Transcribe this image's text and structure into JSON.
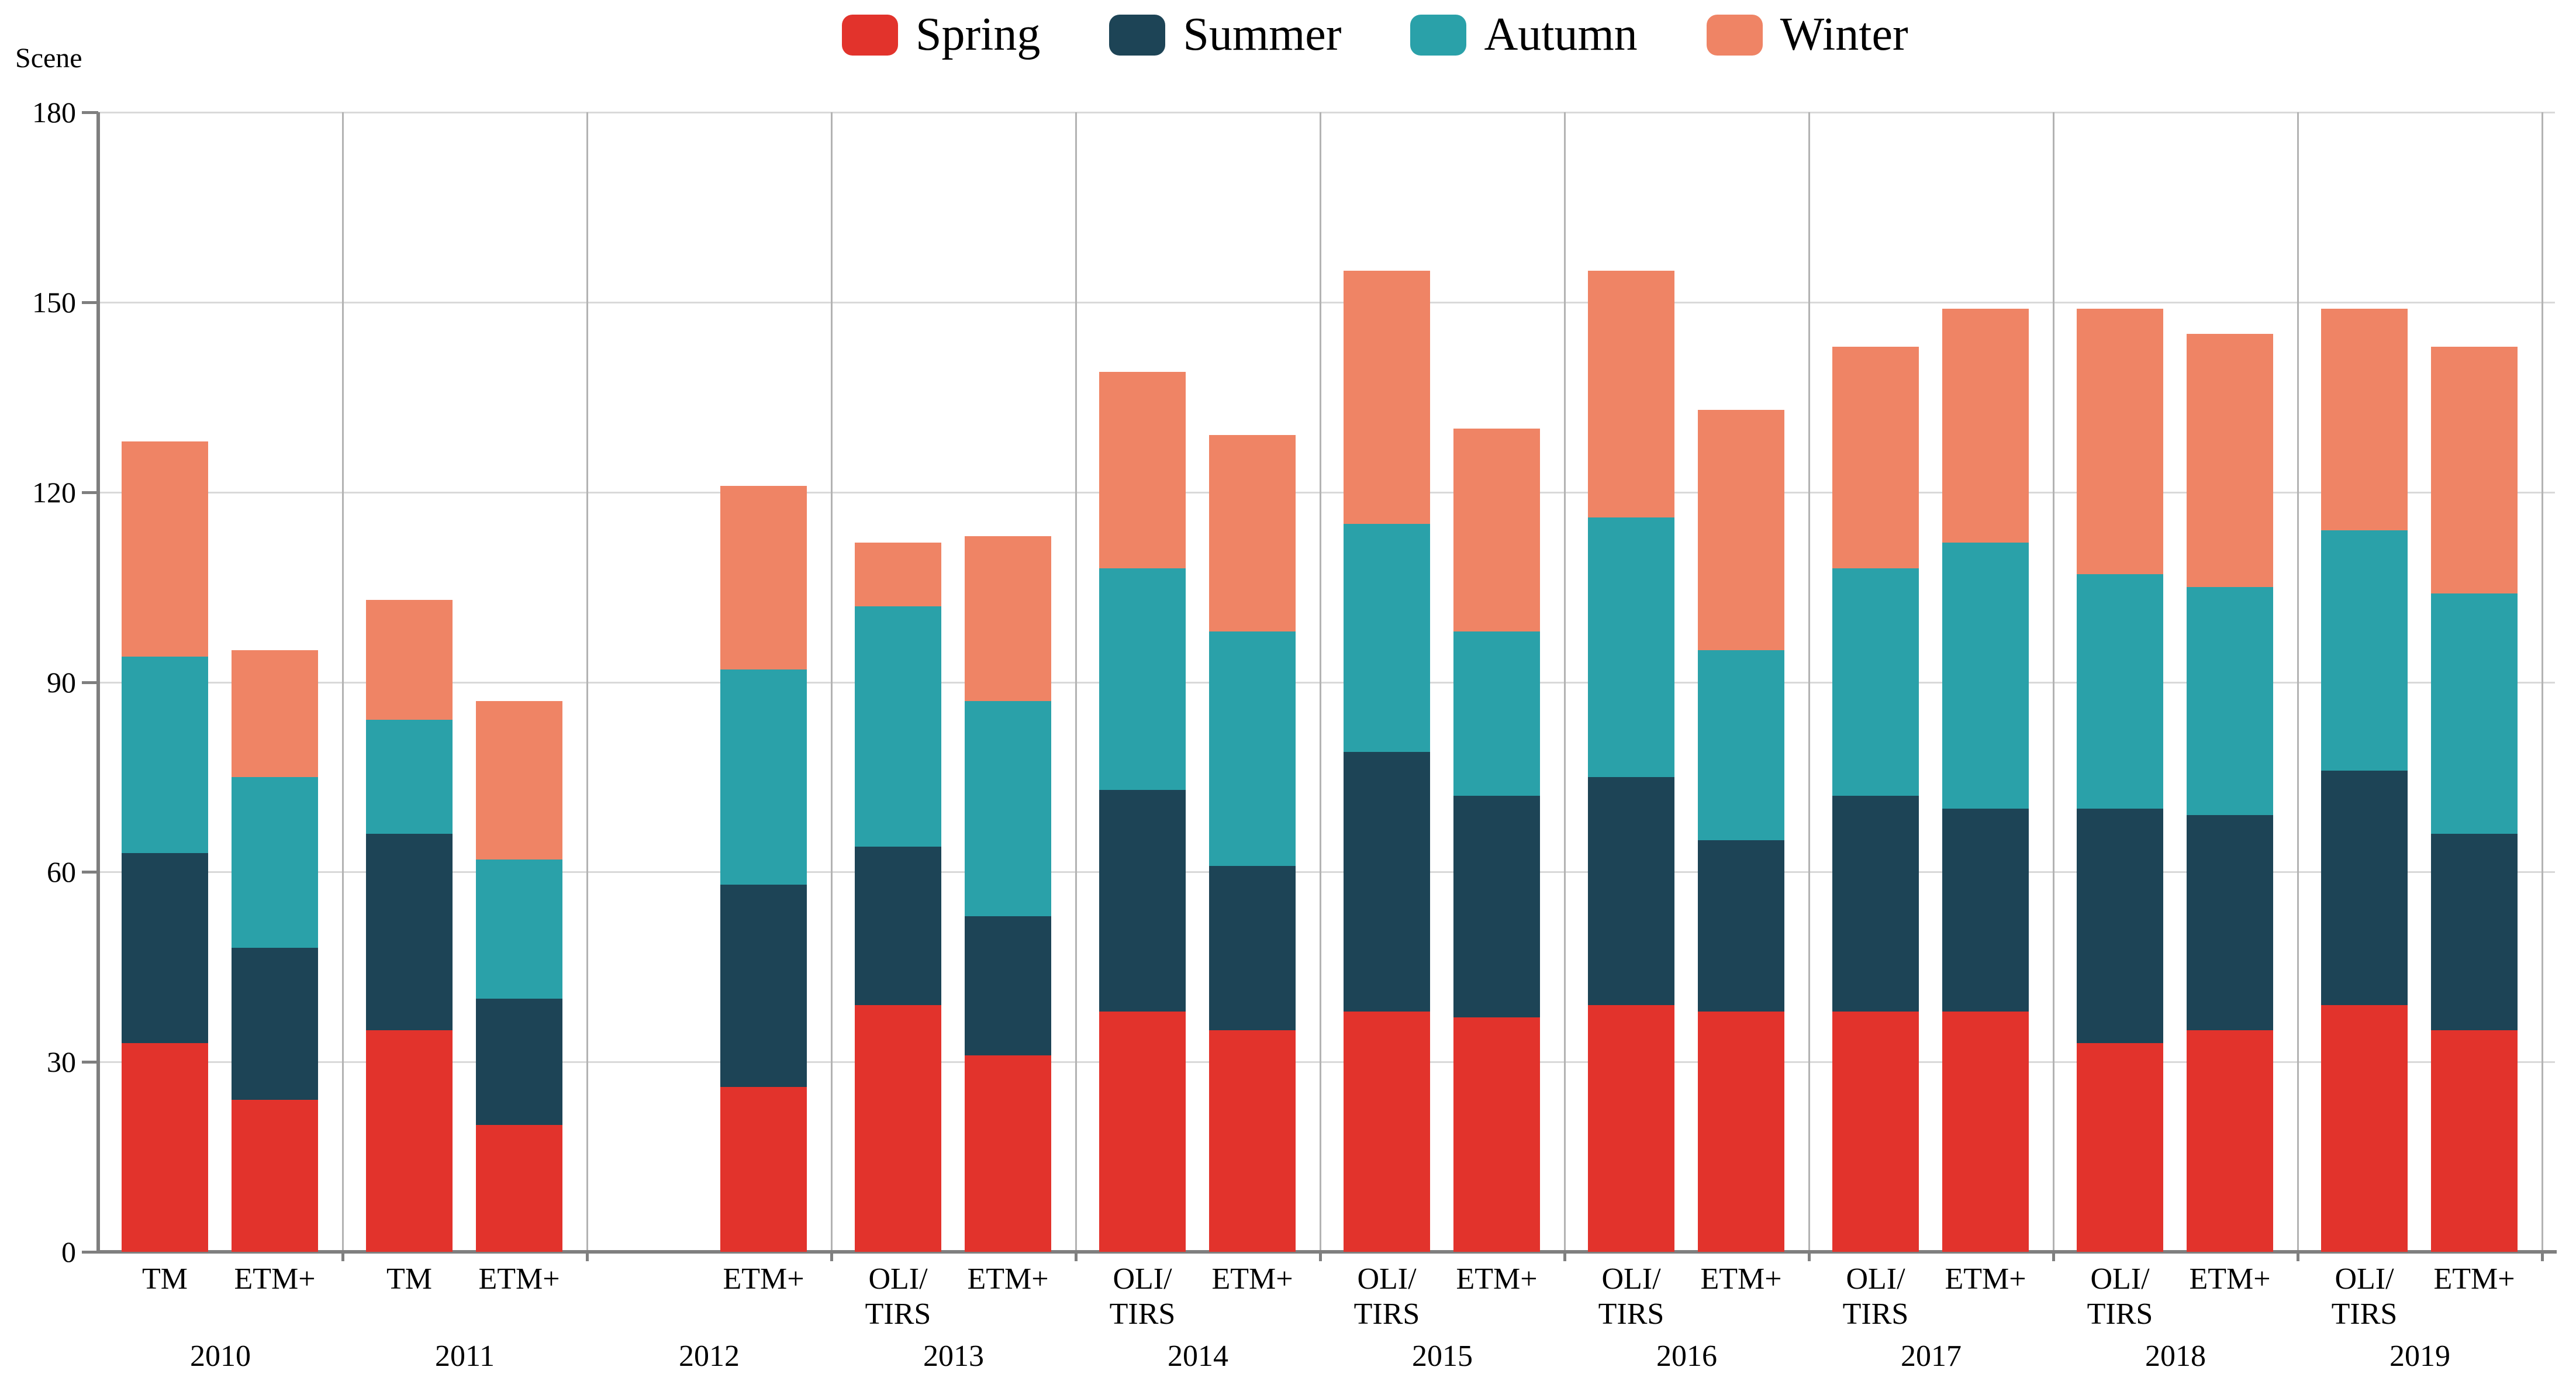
{
  "page": {
    "background": "#ffffff"
  },
  "chart_data": {
    "type": "bar",
    "stacked": true,
    "title": "",
    "xlabel": "",
    "ylabel": "Scene",
    "ylim": [
      0,
      180
    ],
    "yticks": [
      0,
      30,
      60,
      90,
      120,
      150,
      180
    ],
    "grid": true,
    "legend_position": "top",
    "series": [
      {
        "name": "Spring",
        "color": "#e2332c"
      },
      {
        "name": "Summer",
        "color": "#1d4456"
      },
      {
        "name": "Autumn",
        "color": "#2aa1a9"
      },
      {
        "name": "Winter",
        "color": "#ef8465"
      }
    ],
    "groups": [
      {
        "year": "2010",
        "bars": [
          {
            "sensor": "TM",
            "slot": 0,
            "values": [
              33,
              30,
              31,
              34
            ]
          },
          {
            "sensor": "ETM+",
            "slot": 1,
            "values": [
              24,
              24,
              27,
              20
            ]
          }
        ]
      },
      {
        "year": "2011",
        "bars": [
          {
            "sensor": "TM",
            "slot": 0,
            "values": [
              35,
              31,
              18,
              19
            ]
          },
          {
            "sensor": "ETM+",
            "slot": 1,
            "values": [
              20,
              20,
              22,
              25
            ]
          }
        ]
      },
      {
        "year": "2012",
        "bars": [
          {
            "sensor": "ETM+",
            "slot": 1,
            "values": [
              26,
              32,
              34,
              29
            ]
          }
        ]
      },
      {
        "year": "2013",
        "bars": [
          {
            "sensor": "OLI/TIRS",
            "slot": 0,
            "values": [
              39,
              25,
              38,
              10
            ]
          },
          {
            "sensor": "ETM+",
            "slot": 1,
            "values": [
              31,
              22,
              34,
              26
            ]
          }
        ]
      },
      {
        "year": "2014",
        "bars": [
          {
            "sensor": "OLI/TIRS",
            "slot": 0,
            "values": [
              38,
              35,
              35,
              31
            ]
          },
          {
            "sensor": "ETM+",
            "slot": 1,
            "values": [
              35,
              26,
              37,
              31
            ]
          }
        ]
      },
      {
        "year": "2015",
        "bars": [
          {
            "sensor": "OLI/TIRS",
            "slot": 0,
            "values": [
              38,
              41,
              36,
              40
            ]
          },
          {
            "sensor": "ETM+",
            "slot": 1,
            "values": [
              37,
              35,
              26,
              32
            ]
          }
        ]
      },
      {
        "year": "2016",
        "bars": [
          {
            "sensor": "OLI/TIRS",
            "slot": 0,
            "values": [
              39,
              36,
              41,
              39
            ]
          },
          {
            "sensor": "ETM+",
            "slot": 1,
            "values": [
              38,
              27,
              30,
              38
            ]
          }
        ]
      },
      {
        "year": "2017",
        "bars": [
          {
            "sensor": "OLI/TIRS",
            "slot": 0,
            "values": [
              38,
              34,
              36,
              35
            ]
          },
          {
            "sensor": "ETM+",
            "slot": 1,
            "values": [
              38,
              32,
              42,
              37
            ]
          }
        ]
      },
      {
        "year": "2018",
        "bars": [
          {
            "sensor": "OLI/TIRS",
            "slot": 0,
            "values": [
              33,
              37,
              37,
              42
            ]
          },
          {
            "sensor": "ETM+",
            "slot": 1,
            "values": [
              35,
              34,
              36,
              40
            ]
          }
        ]
      },
      {
        "year": "2019",
        "bars": [
          {
            "sensor": "OLI/TIRS",
            "slot": 0,
            "values": [
              39,
              37,
              38,
              35
            ]
          },
          {
            "sensor": "ETM+",
            "slot": 1,
            "values": [
              35,
              31,
              38,
              39
            ]
          }
        ]
      }
    ],
    "colors": {
      "axis": "#7f7f7f",
      "grid_horizontal": "#d9d9d9",
      "grid_vertical": "#b3b3b3",
      "text": "#000000",
      "background": "#ffffff"
    }
  }
}
